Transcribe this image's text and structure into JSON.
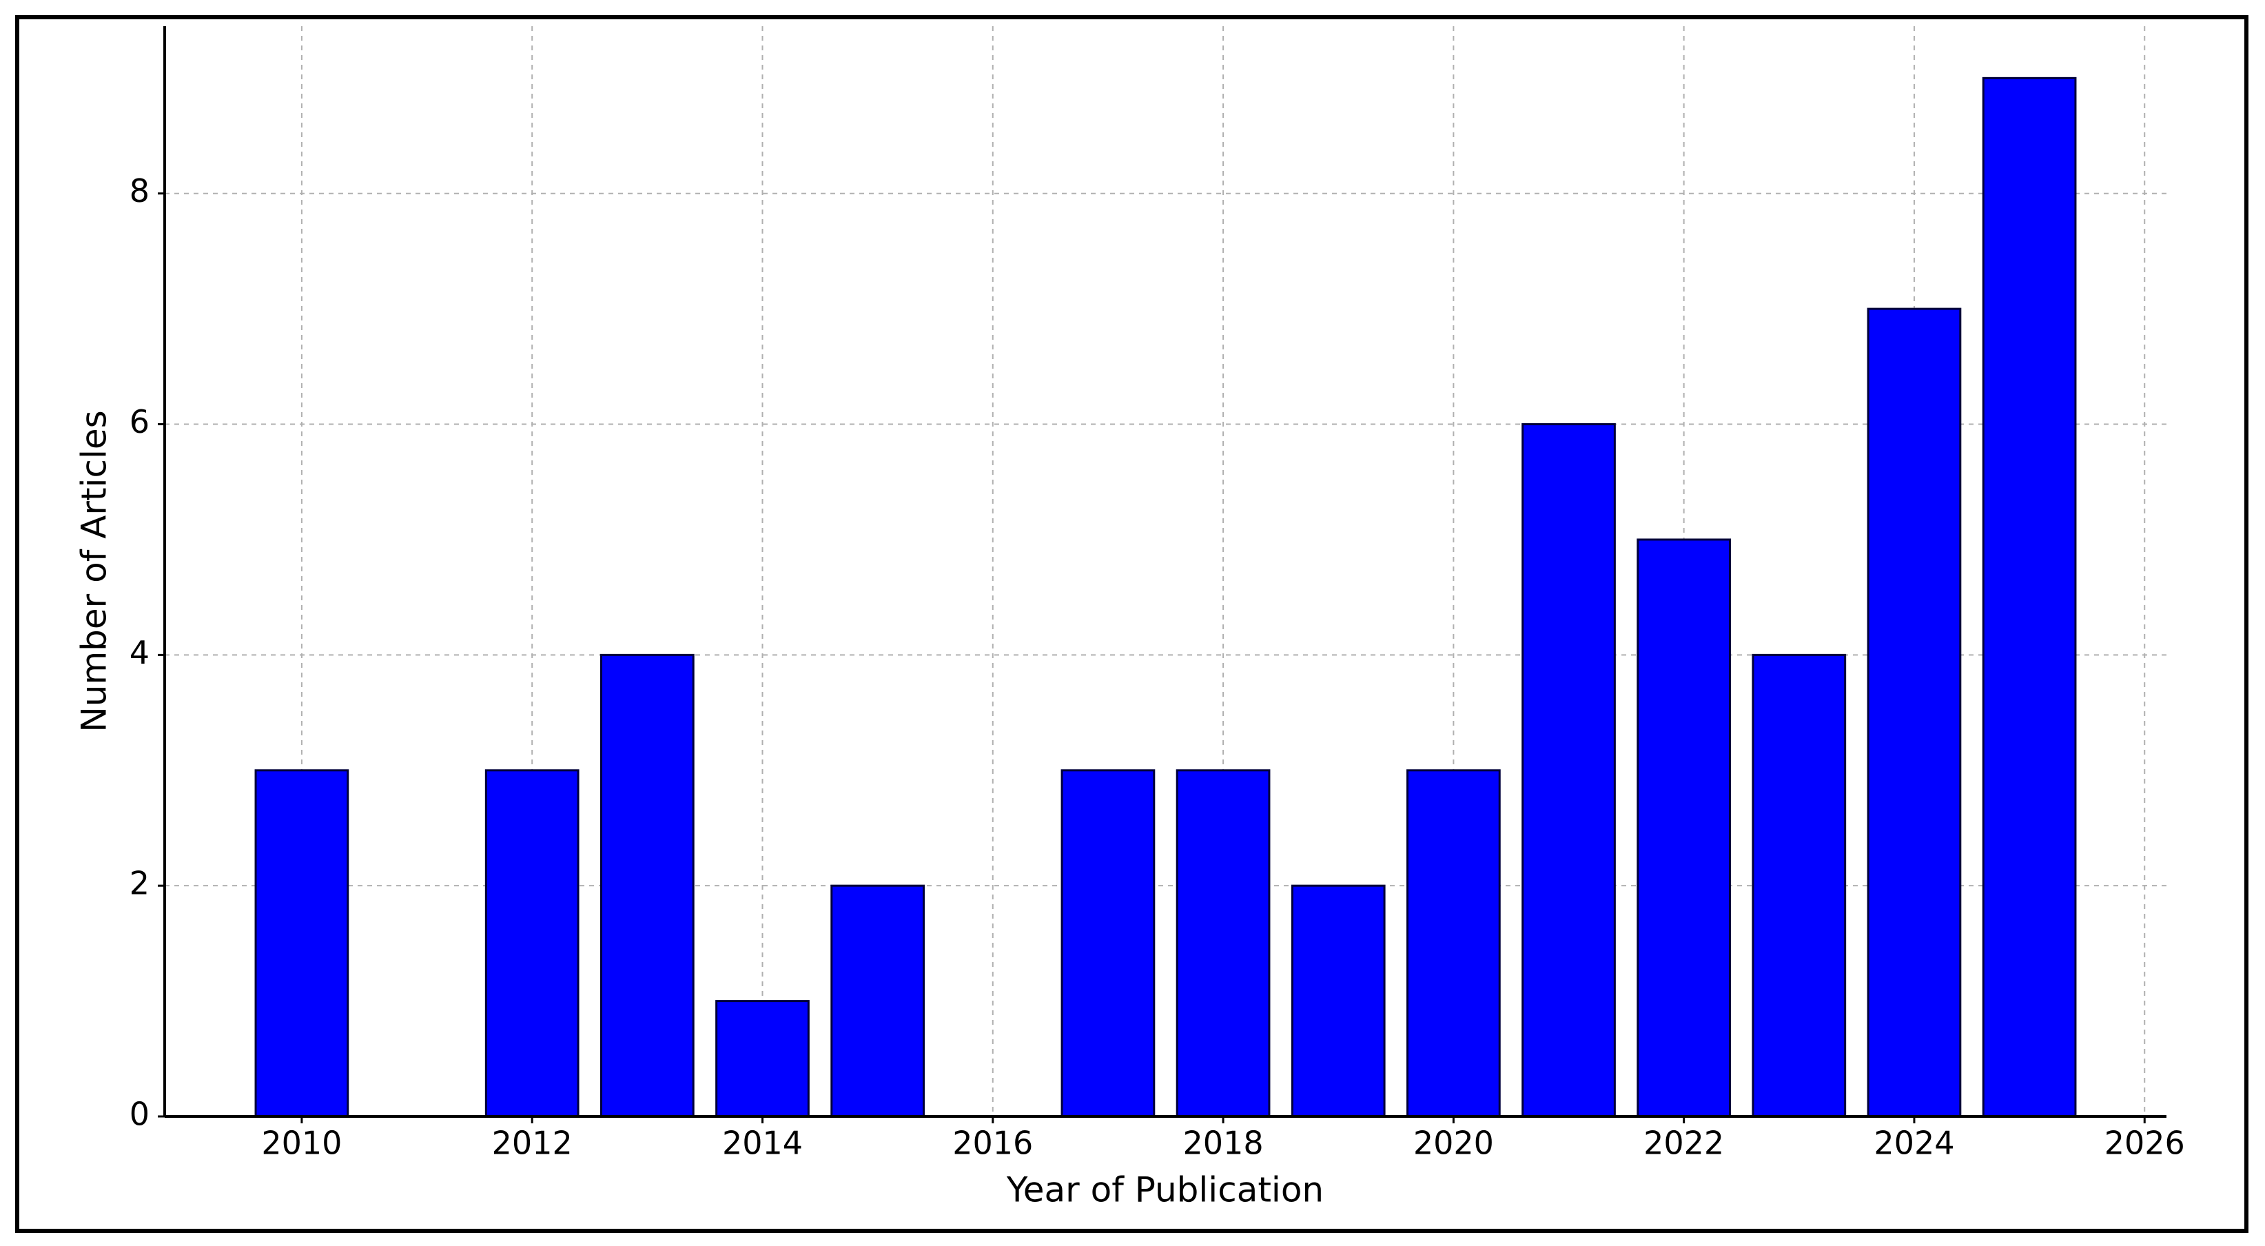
{
  "chart_data": {
    "type": "bar",
    "x_label": "Year of Publication",
    "y_label": "Number of Articles",
    "x": [
      2010,
      2012,
      2013,
      2014,
      2015,
      2017,
      2018,
      2019,
      2020,
      2021,
      2022,
      2023,
      2024,
      2025
    ],
    "values": [
      3,
      3,
      4,
      1,
      2,
      3,
      3,
      2,
      3,
      6,
      5,
      4,
      7,
      9
    ],
    "bar_width": 0.8,
    "color": "#0000ff",
    "edge_color": "#00003a",
    "xlim": [
      2008.81,
      2026.19
    ],
    "ylim": [
      0,
      9.45
    ],
    "xticks": [
      2010,
      2012,
      2014,
      2016,
      2018,
      2020,
      2022,
      2024,
      2026
    ],
    "yticks": [
      0,
      2,
      4,
      6,
      8
    ],
    "grid": true
  }
}
